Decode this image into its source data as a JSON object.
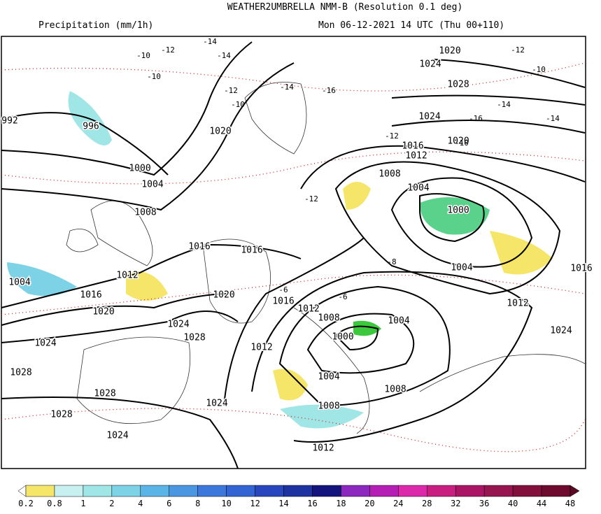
{
  "header": {
    "title": "WEATHER2UMBRELLA NMM-B (Resolution 0.1 deg)",
    "variable": "Precipitation (mm/1h)",
    "run": "Mon 06-12-2021 14 UTC (Thu 00+110)"
  },
  "map": {
    "isobar_labels": [
      "992",
      "996",
      "1000",
      "1004",
      "1008",
      "1012",
      "1016",
      "1020",
      "1024",
      "1024",
      "1028",
      "1028",
      "1028",
      "1024",
      "1024",
      "1028",
      "1016",
      "1016",
      "1020",
      "1016",
      "1012",
      "1012",
      "1004",
      "1008",
      "1012",
      "1008",
      "1004",
      "1000",
      "1000",
      "1004",
      "1008",
      "1004",
      "1012",
      "1016",
      "1020",
      "1024",
      "1028",
      "1024",
      "1020",
      "1012",
      "1024",
      "1016",
      "1004",
      "1020",
      "1008"
    ],
    "temp_labels": [
      "-10",
      "-12",
      "-14",
      "-10",
      "-12",
      "-14",
      "-16",
      "-12",
      "-10",
      "-14",
      "-10",
      "-8",
      "-6",
      "-6",
      "-14",
      "-12",
      "-10",
      "-14",
      "-16",
      "-12"
    ]
  },
  "colorbar": {
    "labels": [
      0.2,
      0.8,
      1,
      2,
      4,
      6,
      8,
      10,
      12,
      14,
      16,
      18,
      20,
      24,
      28,
      32,
      36,
      40,
      44,
      48
    ],
    "colors": [
      "#ffffff",
      "#f5e66a",
      "#c8f0f0",
      "#a0e6e6",
      "#7dd2e6",
      "#5ab4e6",
      "#4b96e1",
      "#3c78dc",
      "#3264d2",
      "#2846be",
      "#1e32a0",
      "#14147d",
      "#8c28be",
      "#b41eb4",
      "#dc28aa",
      "#c81e82",
      "#aa1464",
      "#961450",
      "#820f3c",
      "#6e0a2d",
      "#5a0a23"
    ]
  }
}
